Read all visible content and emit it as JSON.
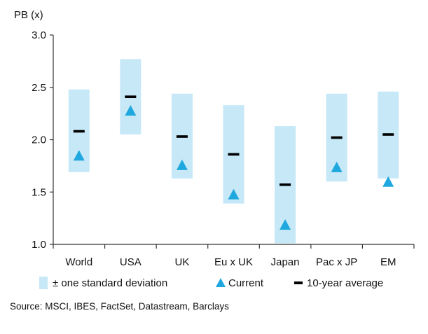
{
  "chart_data": {
    "type": "range-marker",
    "ylabel": "PB (x)",
    "ylim": [
      1.0,
      3.0
    ],
    "yticks": [
      "3.0",
      "2.5",
      "2.0",
      "1.5",
      "1.0"
    ],
    "categories": [
      "World",
      "USA",
      "UK",
      "Eu x UK",
      "Japan",
      "Pac x JP",
      "EM"
    ],
    "series": [
      {
        "name": "± one standard deviation",
        "kind": "range",
        "color": "#c6e8f7",
        "low": [
          1.69,
          2.05,
          1.63,
          1.39,
          1.01,
          1.6,
          1.63
        ],
        "high": [
          2.48,
          2.77,
          2.44,
          2.33,
          2.13,
          2.44,
          2.46
        ]
      },
      {
        "name": "Current",
        "kind": "triangle",
        "color": "#1fa8df",
        "values": [
          1.85,
          2.28,
          1.76,
          1.48,
          1.19,
          1.74,
          1.6
        ]
      },
      {
        "name": "10-year average",
        "kind": "dash",
        "color": "#000000",
        "values": [
          2.08,
          2.41,
          2.03,
          1.86,
          1.57,
          2.02,
          2.05
        ]
      }
    ],
    "legend_placement": "bottom",
    "grid": false
  },
  "source": "Source: MSCI, IBES, FactSet, Datastream, Barclays"
}
